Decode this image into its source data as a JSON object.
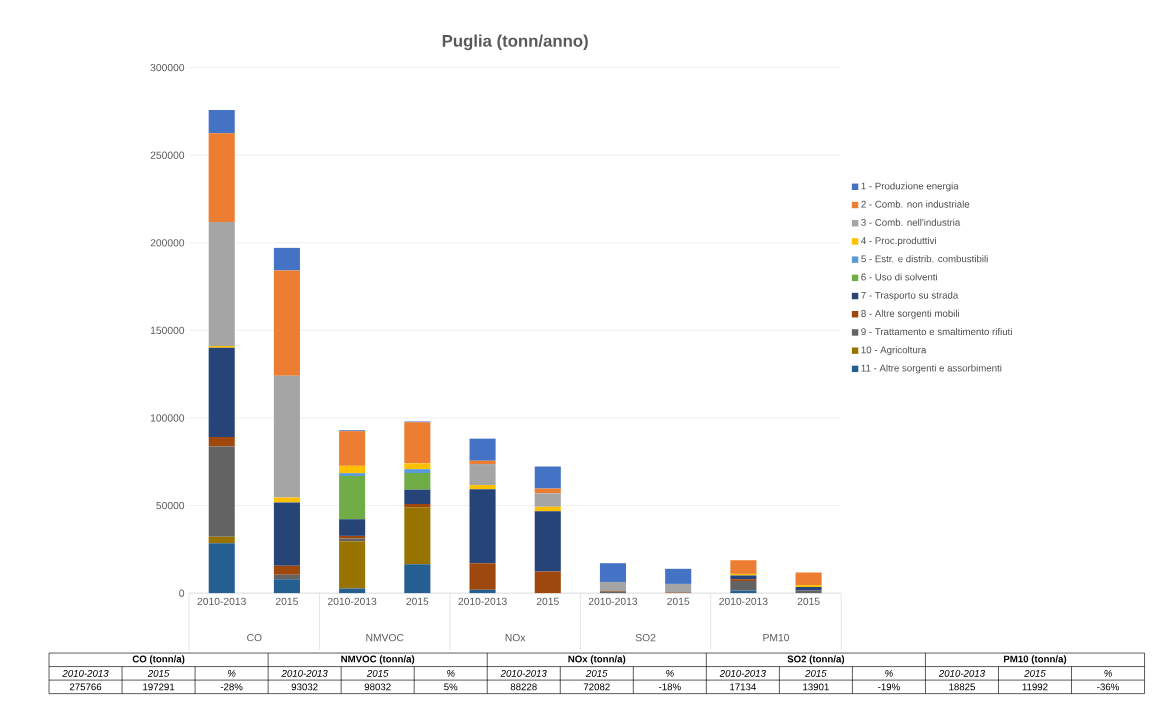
{
  "chart_data": {
    "type": "bar",
    "stacked": true,
    "title": "Puglia (tonn/anno)",
    "categories": [
      "2010-2013",
      "2015",
      "2010-2013",
      "2015",
      "2010-2013",
      "2015",
      "2010-2013",
      "2015",
      "2010-2013",
      "2015"
    ],
    "series": [
      {
        "name": "11 - Altre sorgenti e assorbimenti",
        "color": "#255e91",
        "values": [
          28500,
          7900,
          2600,
          16500,
          1900,
          0,
          0,
          0,
          1500,
          null
        ]
      },
      {
        "name": "10 - Agricoltura",
        "color": "#997300",
        "values": [
          3700,
          0,
          27100,
          32600,
          0,
          0,
          0,
          0,
          0,
          0
        ]
      },
      {
        "name": "9 - Trattamento e smaltimento rifiuti",
        "color": "#636363",
        "values": [
          51500,
          2600,
          1500,
          0,
          0,
          0,
          800,
          300,
          5500,
          1500
        ]
      },
      {
        "name": "8 - Altre sorgenti mobili",
        "color": "#9e480e",
        "values": [
          5500,
          5100,
          1500,
          1800,
          15200,
          12400,
          500,
          200,
          900,
          0
        ]
      },
      {
        "name": "7 - Trasporto su strada",
        "color": "#264478",
        "values": [
          50900,
          36200,
          9500,
          8200,
          42200,
          34300,
          0,
          0,
          2200,
          2000
        ]
      },
      {
        "name": "6 - Uso di solventi",
        "color": "#70ad47",
        "values": [
          0,
          0,
          24700,
          9500,
          0,
          0,
          0,
          0,
          0,
          0
        ]
      },
      {
        "name": "5 - Estr. e distrib. combustibili",
        "color": "#5b9bd5",
        "values": [
          0,
          0,
          1600,
          2200,
          0,
          0,
          0,
          0,
          0,
          0
        ]
      },
      {
        "name": "4 - Proc.produttivi",
        "color": "#ffc000",
        "values": [
          1000,
          2800,
          4200,
          3300,
          2400,
          2600,
          0,
          0,
          900,
          1100
        ]
      },
      {
        "name": "3 - Comb. nell'industria",
        "color": "#a5a5a5",
        "values": [
          70800,
          69500,
          0,
          0,
          12000,
          7800,
          5100,
          4800,
          0,
          0
        ]
      },
      {
        "name": "2 - Comb. non industriale",
        "color": "#ed7d31",
        "values": [
          50600,
          60100,
          19800,
          23400,
          1900,
          2600,
          0,
          0,
          7800,
          7200
        ]
      },
      {
        "name": "1 - Produzione energia",
        "color": "#4472c4",
        "values": [
          13300,
          12900,
          500,
          500,
          12600,
          12600,
          10700,
          8600,
          0,
          0
        ]
      }
    ],
    "ylim": [
      0,
      300000
    ],
    "yticks": [
      0,
      50000,
      100000,
      150000,
      200000,
      250000,
      300000
    ],
    "grid": "y",
    "legend": "right",
    "annotations": [
      "CO",
      "CO (tonn/a)",
      "%",
      "275766",
      "197291",
      "-28%",
      "NMVOC",
      "NMVOC (tonn/a)",
      "%",
      "93032",
      "98032",
      "5%",
      "NOx",
      "NOx (tonn/a)",
      "%",
      "88228",
      "72082",
      "-18%",
      "SO2",
      "SO2 (tonn/a)",
      "%",
      "17134",
      "13901",
      "-19%",
      "PM10",
      "PM10 (tonn/a)",
      "%",
      "18825",
      "11992",
      "-36%"
    ]
  }
}
